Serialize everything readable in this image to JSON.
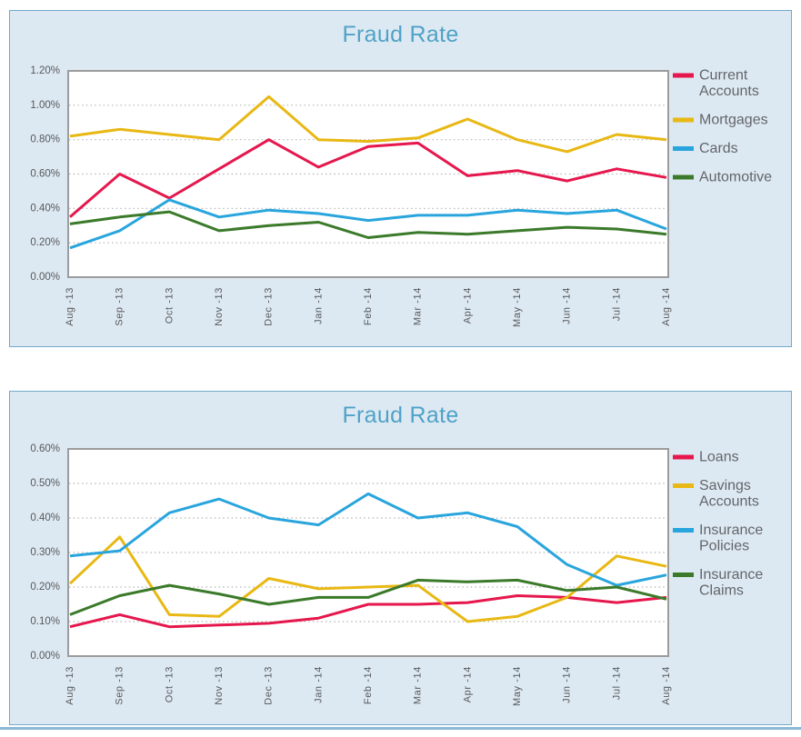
{
  "page": {
    "panel_background": "#dde9f2",
    "panel_border_color": "#74a9c9",
    "title_color": "#4fa2c8",
    "axis_text_color": "#57585b",
    "legend_text_color": "#63656a",
    "plot_border_color": "#9c9c9c",
    "gridline_color": "#b4b4b4",
    "bottom_strip_color": "#8ab9d4"
  },
  "chart_data": [
    {
      "type": "line",
      "title": "Fraud Rate",
      "xlabel": "",
      "ylabel": "",
      "ylim": [
        0,
        1.2
      ],
      "ytick_step": 0.2,
      "ytick_labels_top_to_bottom": [
        "1.20%",
        "1.00%",
        "0.80%",
        "0.60%",
        "0.40%",
        "0.20%",
        "0.00%"
      ],
      "grid": "dotted-horizontal",
      "legend_position": "right",
      "categories": [
        "Aug -13",
        "Sep -13",
        "Oct -13",
        "Nov -13",
        "Dec -13",
        "Jan -14",
        "Feb -14",
        "Mar -14",
        "Apr -14",
        "May -14",
        "Jun -14",
        "Jul -14",
        "Aug -14"
      ],
      "series": [
        {
          "name": "Current Accounts",
          "color": "#e5174d",
          "values": [
            0.35,
            0.6,
            0.46,
            0.63,
            0.8,
            0.64,
            0.76,
            0.78,
            0.59,
            0.62,
            0.56,
            0.63,
            0.58
          ]
        },
        {
          "name": "Mortgages",
          "color": "#e8b814",
          "values": [
            0.82,
            0.86,
            0.83,
            0.8,
            1.05,
            0.8,
            0.79,
            0.81,
            0.92,
            0.8,
            0.73,
            0.83,
            0.8
          ]
        },
        {
          "name": "Cards",
          "color": "#29a5dd",
          "values": [
            0.17,
            0.27,
            0.45,
            0.35,
            0.39,
            0.37,
            0.33,
            0.36,
            0.36,
            0.39,
            0.37,
            0.39,
            0.28
          ]
        },
        {
          "name": "Automotive",
          "color": "#3b7a2a",
          "values": [
            0.31,
            0.35,
            0.38,
            0.27,
            0.3,
            0.32,
            0.23,
            0.26,
            0.25,
            0.27,
            0.29,
            0.28,
            0.25
          ]
        }
      ]
    },
    {
      "type": "line",
      "title": "Fraud Rate",
      "xlabel": "",
      "ylabel": "",
      "ylim": [
        0,
        0.6
      ],
      "ytick_step": 0.1,
      "ytick_labels_top_to_bottom": [
        "0.60%",
        "0.50%",
        "0.40%",
        "0.30%",
        "0.20%",
        "0.10%",
        "0.00%"
      ],
      "grid": "dotted-horizontal",
      "legend_position": "right",
      "categories": [
        "Aug -13",
        "Sep -13",
        "Oct -13",
        "Nov -13",
        "Dec -13",
        "Jan -14",
        "Feb -14",
        "Mar -14",
        "Apr -14",
        "May -14",
        "Jun -14",
        "Jul -14",
        "Aug -14"
      ],
      "series": [
        {
          "name": "Loans",
          "color": "#e5174d",
          "values": [
            0.085,
            0.12,
            0.085,
            0.09,
            0.095,
            0.11,
            0.15,
            0.15,
            0.155,
            0.175,
            0.17,
            0.155,
            0.17
          ]
        },
        {
          "name": "Savings Accounts",
          "color": "#e8b814",
          "values": [
            0.21,
            0.345,
            0.12,
            0.115,
            0.225,
            0.195,
            0.2,
            0.205,
            0.1,
            0.115,
            0.17,
            0.29,
            0.26
          ]
        },
        {
          "name": "Insurance Policies",
          "color": "#29a5dd",
          "values": [
            0.29,
            0.305,
            0.415,
            0.455,
            0.4,
            0.38,
            0.47,
            0.4,
            0.415,
            0.375,
            0.265,
            0.205,
            0.235
          ]
        },
        {
          "name": "Insurance Claims",
          "color": "#3b7a2a",
          "values": [
            0.12,
            0.175,
            0.205,
            0.18,
            0.15,
            0.17,
            0.17,
            0.22,
            0.215,
            0.22,
            0.19,
            0.2,
            0.165
          ]
        }
      ]
    }
  ]
}
